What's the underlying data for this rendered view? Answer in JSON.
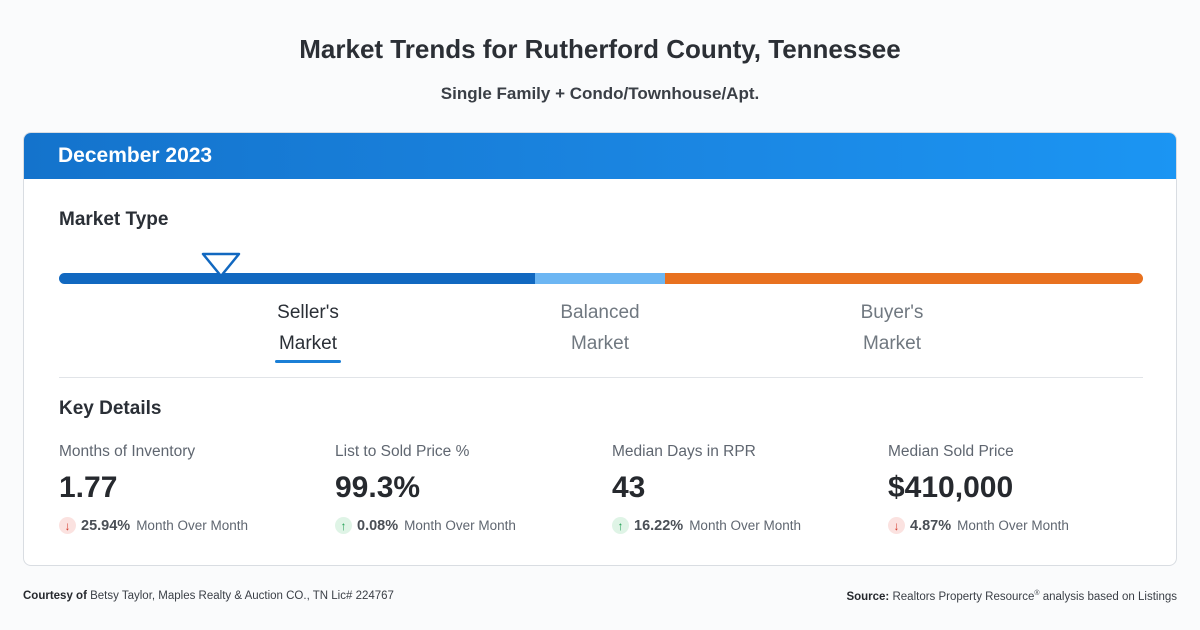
{
  "header": {
    "title": "Market Trends for Rutherford County, Tennessee",
    "subtitle": "Single Family + Condo/Townhouse/Apt."
  },
  "card": {
    "period": "December 2023",
    "market_type_title": "Market Type",
    "market_scale": {
      "marker_position": 0.15,
      "segments": [
        {
          "label_line1": "Seller's",
          "label_line2": "Market",
          "color": "#1168c0",
          "active": true
        },
        {
          "label_line1": "Balanced",
          "label_line2": "Market",
          "color": "#6cb6f3",
          "active": false
        },
        {
          "label_line1": "Buyer's",
          "label_line2": "Market",
          "color": "#e8711f",
          "active": false
        }
      ]
    },
    "key_details_title": "Key Details",
    "metrics": [
      {
        "label": "Months of Inventory",
        "value": "1.77",
        "change": "25.94%",
        "direction": "down",
        "period_text": "Month Over Month"
      },
      {
        "label": "List to Sold Price %",
        "value": "99.3%",
        "change": "0.08%",
        "direction": "up",
        "period_text": "Month Over Month"
      },
      {
        "label": "Median Days in RPR",
        "value": "43",
        "change": "16.22%",
        "direction": "up",
        "period_text": "Month Over Month"
      },
      {
        "label": "Median Sold Price",
        "value": "$410,000",
        "change": "4.87%",
        "direction": "down",
        "period_text": "Month Over Month"
      }
    ]
  },
  "footer": {
    "courtesy_label": "Courtesy of",
    "courtesy_text": "Betsy Taylor, Maples Realty & Auction CO., TN Lic# 224767",
    "source_label": "Source:",
    "source_text_1": "Realtors Property Resource",
    "source_reg": "®",
    "source_text_2": "analysis based on Listings"
  },
  "colors": {
    "header_blue": "#1473cc",
    "down_red": "#d33a2c",
    "up_green": "#1e9e52",
    "buyer_orange": "#e8711f"
  },
  "icons": {
    "marker": "triangle-down-marker-icon",
    "down": "arrow-down-icon",
    "up": "arrow-up-icon"
  }
}
